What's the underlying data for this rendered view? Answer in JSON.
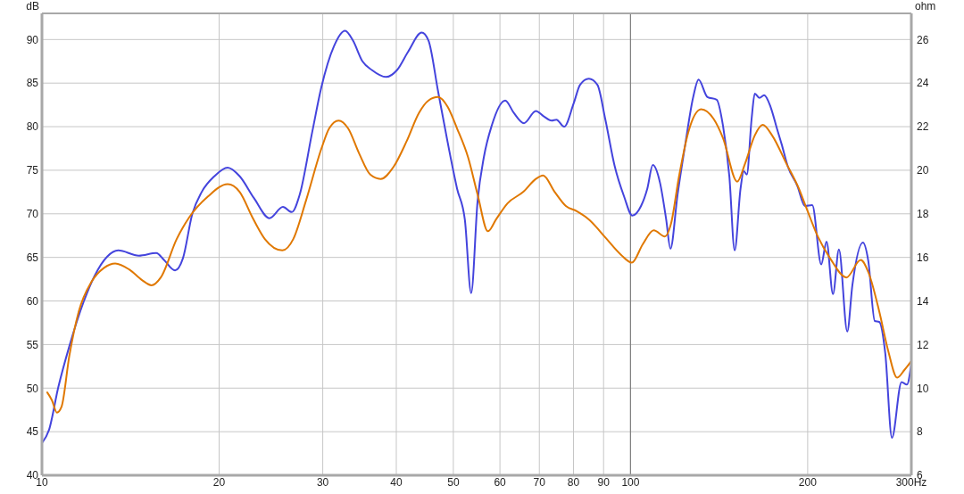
{
  "chart_data": {
    "type": "line",
    "ylabel": "dB",
    "y2label": "ohm",
    "log": "x",
    "xlim": [
      10,
      300
    ],
    "xticks": [
      10,
      20,
      30,
      40,
      50,
      60,
      70,
      80,
      90,
      100,
      200,
      {
        "value": 300,
        "label": "300Hz"
      }
    ],
    "ylim": [
      40,
      93
    ],
    "yticks": [
      40,
      45,
      50,
      55,
      60,
      65,
      70,
      75,
      80,
      85,
      90
    ],
    "y2lim": [
      6,
      27.2
    ],
    "y2ticks": [
      6,
      8,
      10,
      12,
      14,
      16,
      18,
      20,
      22,
      24,
      26
    ],
    "grid": true,
    "ref_lines": [
      {
        "axis": "x",
        "value": 100,
        "color": "#808080"
      }
    ],
    "series": [
      {
        "color": "#4444dd",
        "x": [
          10,
          10.28,
          10.66,
          11.13,
          11.77,
          12.29,
          12.91,
          13.48,
          14.61,
          15.64,
          16.12,
          16.83,
          17.36,
          18.01,
          18.68,
          19.62,
          20.68,
          21.68,
          22.92,
          24.36,
          25.67,
          26.58,
          27.41,
          28.79,
          29.83,
          31.33,
          32.73,
          33.75,
          35.04,
          36.35,
          38.42,
          40.12,
          41.89,
          44.17,
          45.36,
          47.09,
          48.87,
          50.73,
          52.31,
          53.61,
          54.98,
          56.34,
          58.09,
          61.25,
          63.32,
          65.92,
          69.05,
          71.18,
          73.45,
          74.82,
          77.14,
          80.08,
          82.09,
          84.95,
          87.85,
          90.57,
          93.97,
          97.5,
          100.7,
          104.2,
          106.8,
          109.1,
          112.2,
          115,
          116.9,
          120.2,
          123.9,
          127.8,
          130.5,
          135.1,
          140.1,
          143.6,
          147.2,
          150.3,
          153.8,
          155.7,
          157.6,
          160.6,
          162.6,
          165.6,
          168.7,
          172.9,
          177.3,
          180.6,
          185.1,
          192.1,
          197.8,
          203.6,
          210.9,
          215.3,
          220.8,
          226,
          233.5,
          238.2,
          248.2,
          253.5,
          260,
          264.6,
          270.9,
          278.1,
          288.7,
          294.8,
          300
        ],
        "values": [
          43.7,
          45.2,
          50.1,
          54.8,
          59.9,
          62.9,
          65.1,
          65.8,
          65.2,
          65.5,
          64.7,
          63.5,
          64.9,
          70,
          72.5,
          74.3,
          75.3,
          74.3,
          71.8,
          69.5,
          70.8,
          70.2,
          72.2,
          79.4,
          84.5,
          89.2,
          91,
          89.9,
          87.5,
          86.5,
          85.7,
          86.5,
          88.6,
          90.8,
          89.9,
          84.1,
          78.3,
          72.9,
          69.3,
          60.9,
          71.5,
          76.5,
          80.1,
          83,
          81.6,
          80.4,
          81.8,
          81.2,
          80.7,
          80.8,
          80,
          82.7,
          84.8,
          85.5,
          84.8,
          80.9,
          75.5,
          72,
          69.8,
          70.9,
          72.9,
          75.6,
          73.6,
          69.3,
          66,
          72.2,
          78,
          83.4,
          85.4,
          83.4,
          83.1,
          80.1,
          74.3,
          65.8,
          72.9,
          74.9,
          74.5,
          80.9,
          83.8,
          83.3,
          83.6,
          82.3,
          79.8,
          78,
          75.4,
          73.2,
          70.9,
          71,
          64.2,
          66.8,
          60.8,
          65.9,
          56.5,
          61.8,
          66.7,
          64.6,
          57.7,
          57.6,
          54,
          44.3,
          50.7,
          50.4,
          52.8
        ]
      },
      {
        "color": "#e07800",
        "x": [
          10.21,
          10.4,
          10.6,
          10.8,
          11.13,
          11.55,
          12.14,
          12.75,
          13.32,
          14.08,
          14.79,
          15.35,
          15.92,
          16.94,
          17.79,
          19.15,
          20.68,
          21.68,
          22.78,
          23.92,
          25.61,
          26.73,
          28.09,
          29.88,
          30.76,
          31.92,
          33.13,
          34.6,
          36.13,
          37.62,
          39.58,
          41.63,
          43.72,
          45.36,
          47.09,
          48.87,
          50.73,
          52.96,
          54.98,
          57.24,
          59.15,
          61.79,
          65.69,
          69.05,
          71.03,
          74.35,
          77.65,
          81.04,
          85.16,
          90.57,
          96.33,
          100.5,
          104.9,
          109.5,
          114.4,
          117.2,
          120.9,
          125.4,
          131.8,
          138.4,
          143.6,
          151.8,
          156.6,
          162.6,
          167.7,
          174,
          183.9,
          193.2,
          198.9,
          208.4,
          218.3,
          232.7,
          246.1,
          253.9,
          264.6,
          274,
          283.8,
          292.1,
          300
        ],
        "values": [
          49.5,
          48.6,
          47.2,
          47.9,
          53.7,
          58.8,
          62.2,
          63.8,
          64.3,
          63.6,
          62.4,
          61.8,
          62.7,
          67.1,
          69.6,
          72,
          73.4,
          72.5,
          69.6,
          67.1,
          65.8,
          67.1,
          71.5,
          77.6,
          79.8,
          80.7,
          79.8,
          76.9,
          74.5,
          74,
          75.4,
          78.3,
          81.6,
          83,
          83.4,
          82.3,
          79.8,
          76.5,
          72.2,
          68,
          69.4,
          71.2,
          72.5,
          74,
          74.4,
          72.5,
          70.9,
          70.3,
          69.3,
          67.3,
          65.3,
          64.4,
          66.5,
          68.1,
          67.4,
          68.9,
          74.3,
          79.4,
          82,
          80.9,
          78.7,
          73.7,
          75.8,
          79,
          80.2,
          79,
          75.8,
          72.9,
          70.7,
          67.3,
          64.9,
          62.7,
          64.7,
          63.2,
          58.8,
          54.3,
          51.2,
          52.1,
          53.1
        ]
      }
    ]
  }
}
